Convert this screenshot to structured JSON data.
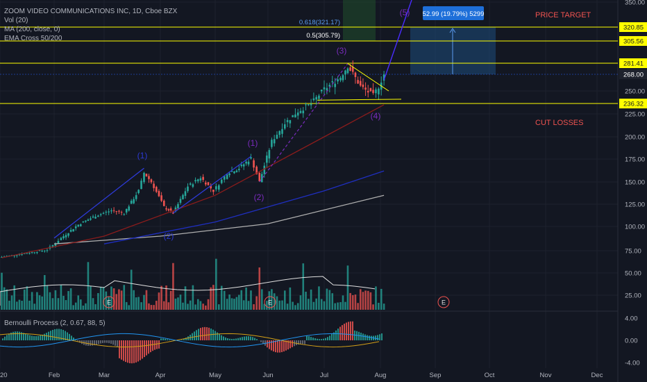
{
  "legend": {
    "symbol": "ZOOM VIDEO COMMUNICATIONS INC, 1D, Cboe BZX",
    "vol": "Vol (20)",
    "ma": "MA (200, close, 0)",
    "ema": "EMA Cross 50/200"
  },
  "oscillator": {
    "title": "Bernoulli Process (2, 0.67, 88, 5)",
    "ticks": [
      "4.00",
      "0.00",
      "-4.00"
    ]
  },
  "colors": {
    "background": "#131722",
    "up": "#26a69a",
    "down": "#ef5350",
    "level_line": "#ffff00",
    "wave_line": "#2d3ad6",
    "target_box": "#1e4d7b",
    "ma200": "#b0b0b0",
    "ema50": "#8b1c1c",
    "ema200": "#1f2fc0",
    "annotation_red": "#ef5350",
    "wave_label": "#7b2cbf"
  },
  "annotations": {
    "price_target": "PRICE TARGET",
    "cut_losses": "CUT LOSSES",
    "fib_618": "0.618(321.17)",
    "fib_5": "0.5(305.79)",
    "measure_box": "52.99 (19.79%) 5299",
    "earnings_marker": "E",
    "wave_labels": [
      "(1)",
      "(2)",
      "(1)",
      "(2)",
      "(3)",
      "(4)",
      "(5)"
    ]
  },
  "chart_data": {
    "type": "candlestick",
    "title": "ZOOM VIDEO COMMUNICATIONS INC, 1D, Cboe BZX",
    "x_ticks": [
      "20",
      "Feb",
      "Mar",
      "Apr",
      "May",
      "Jun",
      "Jul",
      "Aug",
      "Sep",
      "Oct",
      "Nov",
      "Dec"
    ],
    "y_ticks": [
      "350.00",
      "250.00",
      "225.00",
      "200.00",
      "175.00",
      "150.00",
      "125.00",
      "100.00",
      "75.00",
      "50.00",
      "25.00"
    ],
    "ylim": [
      0,
      350
    ],
    "price_tags": [
      "320.85",
      "305.56",
      "281.41",
      "268.00",
      "236.32"
    ],
    "price_levels": {
      "fib_618": 321.17,
      "fib_5": 305.79,
      "level_320": 320.85,
      "level_305": 305.56,
      "level_281": 281.41,
      "last_close": 268.0,
      "level_236": 236.32
    },
    "close_series": [
      {
        "date": "2020-01-02",
        "close": 68
      },
      {
        "date": "2020-01-15",
        "close": 72
      },
      {
        "date": "2020-01-28",
        "close": 76
      },
      {
        "date": "2020-02-05",
        "close": 88
      },
      {
        "date": "2020-02-15",
        "close": 102
      },
      {
        "date": "2020-02-25",
        "close": 112
      },
      {
        "date": "2020-03-05",
        "close": 118
      },
      {
        "date": "2020-03-12",
        "close": 115
      },
      {
        "date": "2020-03-20",
        "close": 140
      },
      {
        "date": "2020-03-23",
        "close": 160
      },
      {
        "date": "2020-03-27",
        "close": 150
      },
      {
        "date": "2020-04-03",
        "close": 122
      },
      {
        "date": "2020-04-08",
        "close": 115
      },
      {
        "date": "2020-04-16",
        "close": 145
      },
      {
        "date": "2020-04-23",
        "close": 155
      },
      {
        "date": "2020-04-30",
        "close": 140
      },
      {
        "date": "2020-05-08",
        "close": 160
      },
      {
        "date": "2020-05-15",
        "close": 165
      },
      {
        "date": "2020-05-22",
        "close": 176
      },
      {
        "date": "2020-05-27",
        "close": 150
      },
      {
        "date": "2020-06-03",
        "close": 195
      },
      {
        "date": "2020-06-10",
        "close": 215
      },
      {
        "date": "2020-06-17",
        "close": 228
      },
      {
        "date": "2020-06-24",
        "close": 236
      },
      {
        "date": "2020-07-01",
        "close": 252
      },
      {
        "date": "2020-07-10",
        "close": 265
      },
      {
        "date": "2020-07-14",
        "close": 278
      },
      {
        "date": "2020-07-21",
        "close": 255
      },
      {
        "date": "2020-07-28",
        "close": 245
      },
      {
        "date": "2020-07-31",
        "close": 255
      },
      {
        "date": "2020-08-03",
        "close": 268
      }
    ],
    "moving_averages": [
      {
        "name": "MA (200, close, 0)",
        "points": [
          {
            "date": "2020-02-01",
            "value": 82
          },
          {
            "date": "2020-04-01",
            "value": 90
          },
          {
            "date": "2020-06-01",
            "value": 103
          },
          {
            "date": "2020-08-03",
            "value": 135
          }
        ]
      },
      {
        "name": "EMA 50",
        "points": [
          {
            "date": "2020-01-02",
            "value": 67
          },
          {
            "date": "2020-03-01",
            "value": 90
          },
          {
            "date": "2020-05-01",
            "value": 135
          },
          {
            "date": "2020-07-01",
            "value": 200
          },
          {
            "date": "2020-08-03",
            "value": 235
          }
        ]
      },
      {
        "name": "EMA 200",
        "points": [
          {
            "date": "2020-03-01",
            "value": 82
          },
          {
            "date": "2020-05-01",
            "value": 105
          },
          {
            "date": "2020-07-01",
            "value": 140
          },
          {
            "date": "2020-08-03",
            "value": 162
          }
        ]
      }
    ],
    "grid": true
  }
}
